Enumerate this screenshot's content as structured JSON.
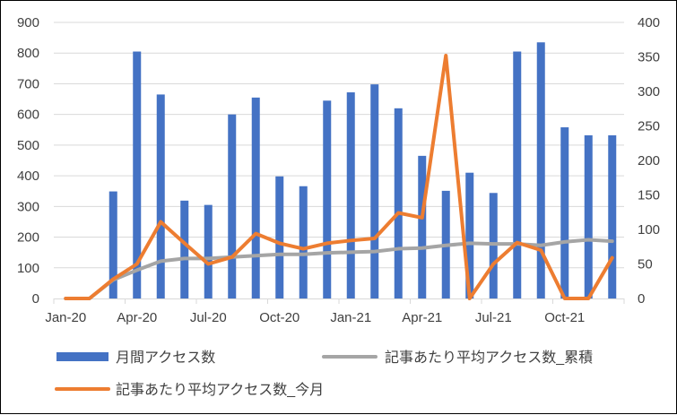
{
  "chart_data": {
    "type": "bar+line",
    "categories": [
      "Jan-20",
      "Feb-20",
      "Mar-20",
      "Apr-20",
      "May-20",
      "Jun-20",
      "Jul-20",
      "Aug-20",
      "Sep-20",
      "Oct-20",
      "Nov-20",
      "Dec-20",
      "Jan-21",
      "Feb-21",
      "Mar-21",
      "Apr-21",
      "May-21",
      "Jun-21",
      "Jul-21",
      "Aug-21",
      "Sep-21",
      "Oct-21",
      "Nov-21",
      "Dec-21"
    ],
    "x_tick_labels": [
      "Jan-20",
      "Apr-20",
      "Jul-20",
      "Oct-20",
      "Jan-21",
      "Apr-21",
      "Jul-21",
      "Oct-21"
    ],
    "y_left": {
      "lim": [
        0,
        900
      ],
      "ticks": [
        "0",
        "100",
        "200",
        "300",
        "400",
        "500",
        "600",
        "700",
        "800",
        "900"
      ]
    },
    "y_right": {
      "lim": [
        0,
        400
      ],
      "ticks": [
        "0",
        "50",
        "100",
        "150",
        "200",
        "250",
        "300",
        "350",
        "400"
      ]
    },
    "grid": true,
    "legend_position": "bottom",
    "series": [
      {
        "name": "月間アクセス数",
        "type": "bar",
        "axis": "left",
        "color": "#4472C4",
        "values": [
          0,
          0,
          349,
          805,
          665,
          319,
          305,
          600,
          655,
          398,
          366,
          645,
          672,
          698,
          620,
          465,
          351,
          410,
          344,
          805,
          835,
          558,
          532,
          532
        ]
      },
      {
        "name": "記事あたり平均アクセス数_累積",
        "type": "line",
        "axis": "right",
        "color": "#A5A5A5",
        "values": [
          0,
          0,
          27,
          41,
          54,
          58,
          58,
          60,
          62,
          64,
          64,
          66,
          67,
          68,
          72,
          73,
          77,
          80,
          79,
          79,
          77,
          82,
          85,
          83
        ]
      },
      {
        "name": "記事あたり平均アクセス数_今月",
        "type": "line",
        "axis": "right",
        "color": "#ED7D31",
        "values": [
          0,
          0,
          28,
          50,
          111,
          80,
          50,
          60,
          94,
          80,
          72,
          80,
          84,
          87,
          124,
          117,
          352,
          0,
          50,
          81,
          70,
          0,
          0,
          59
        ]
      }
    ]
  }
}
